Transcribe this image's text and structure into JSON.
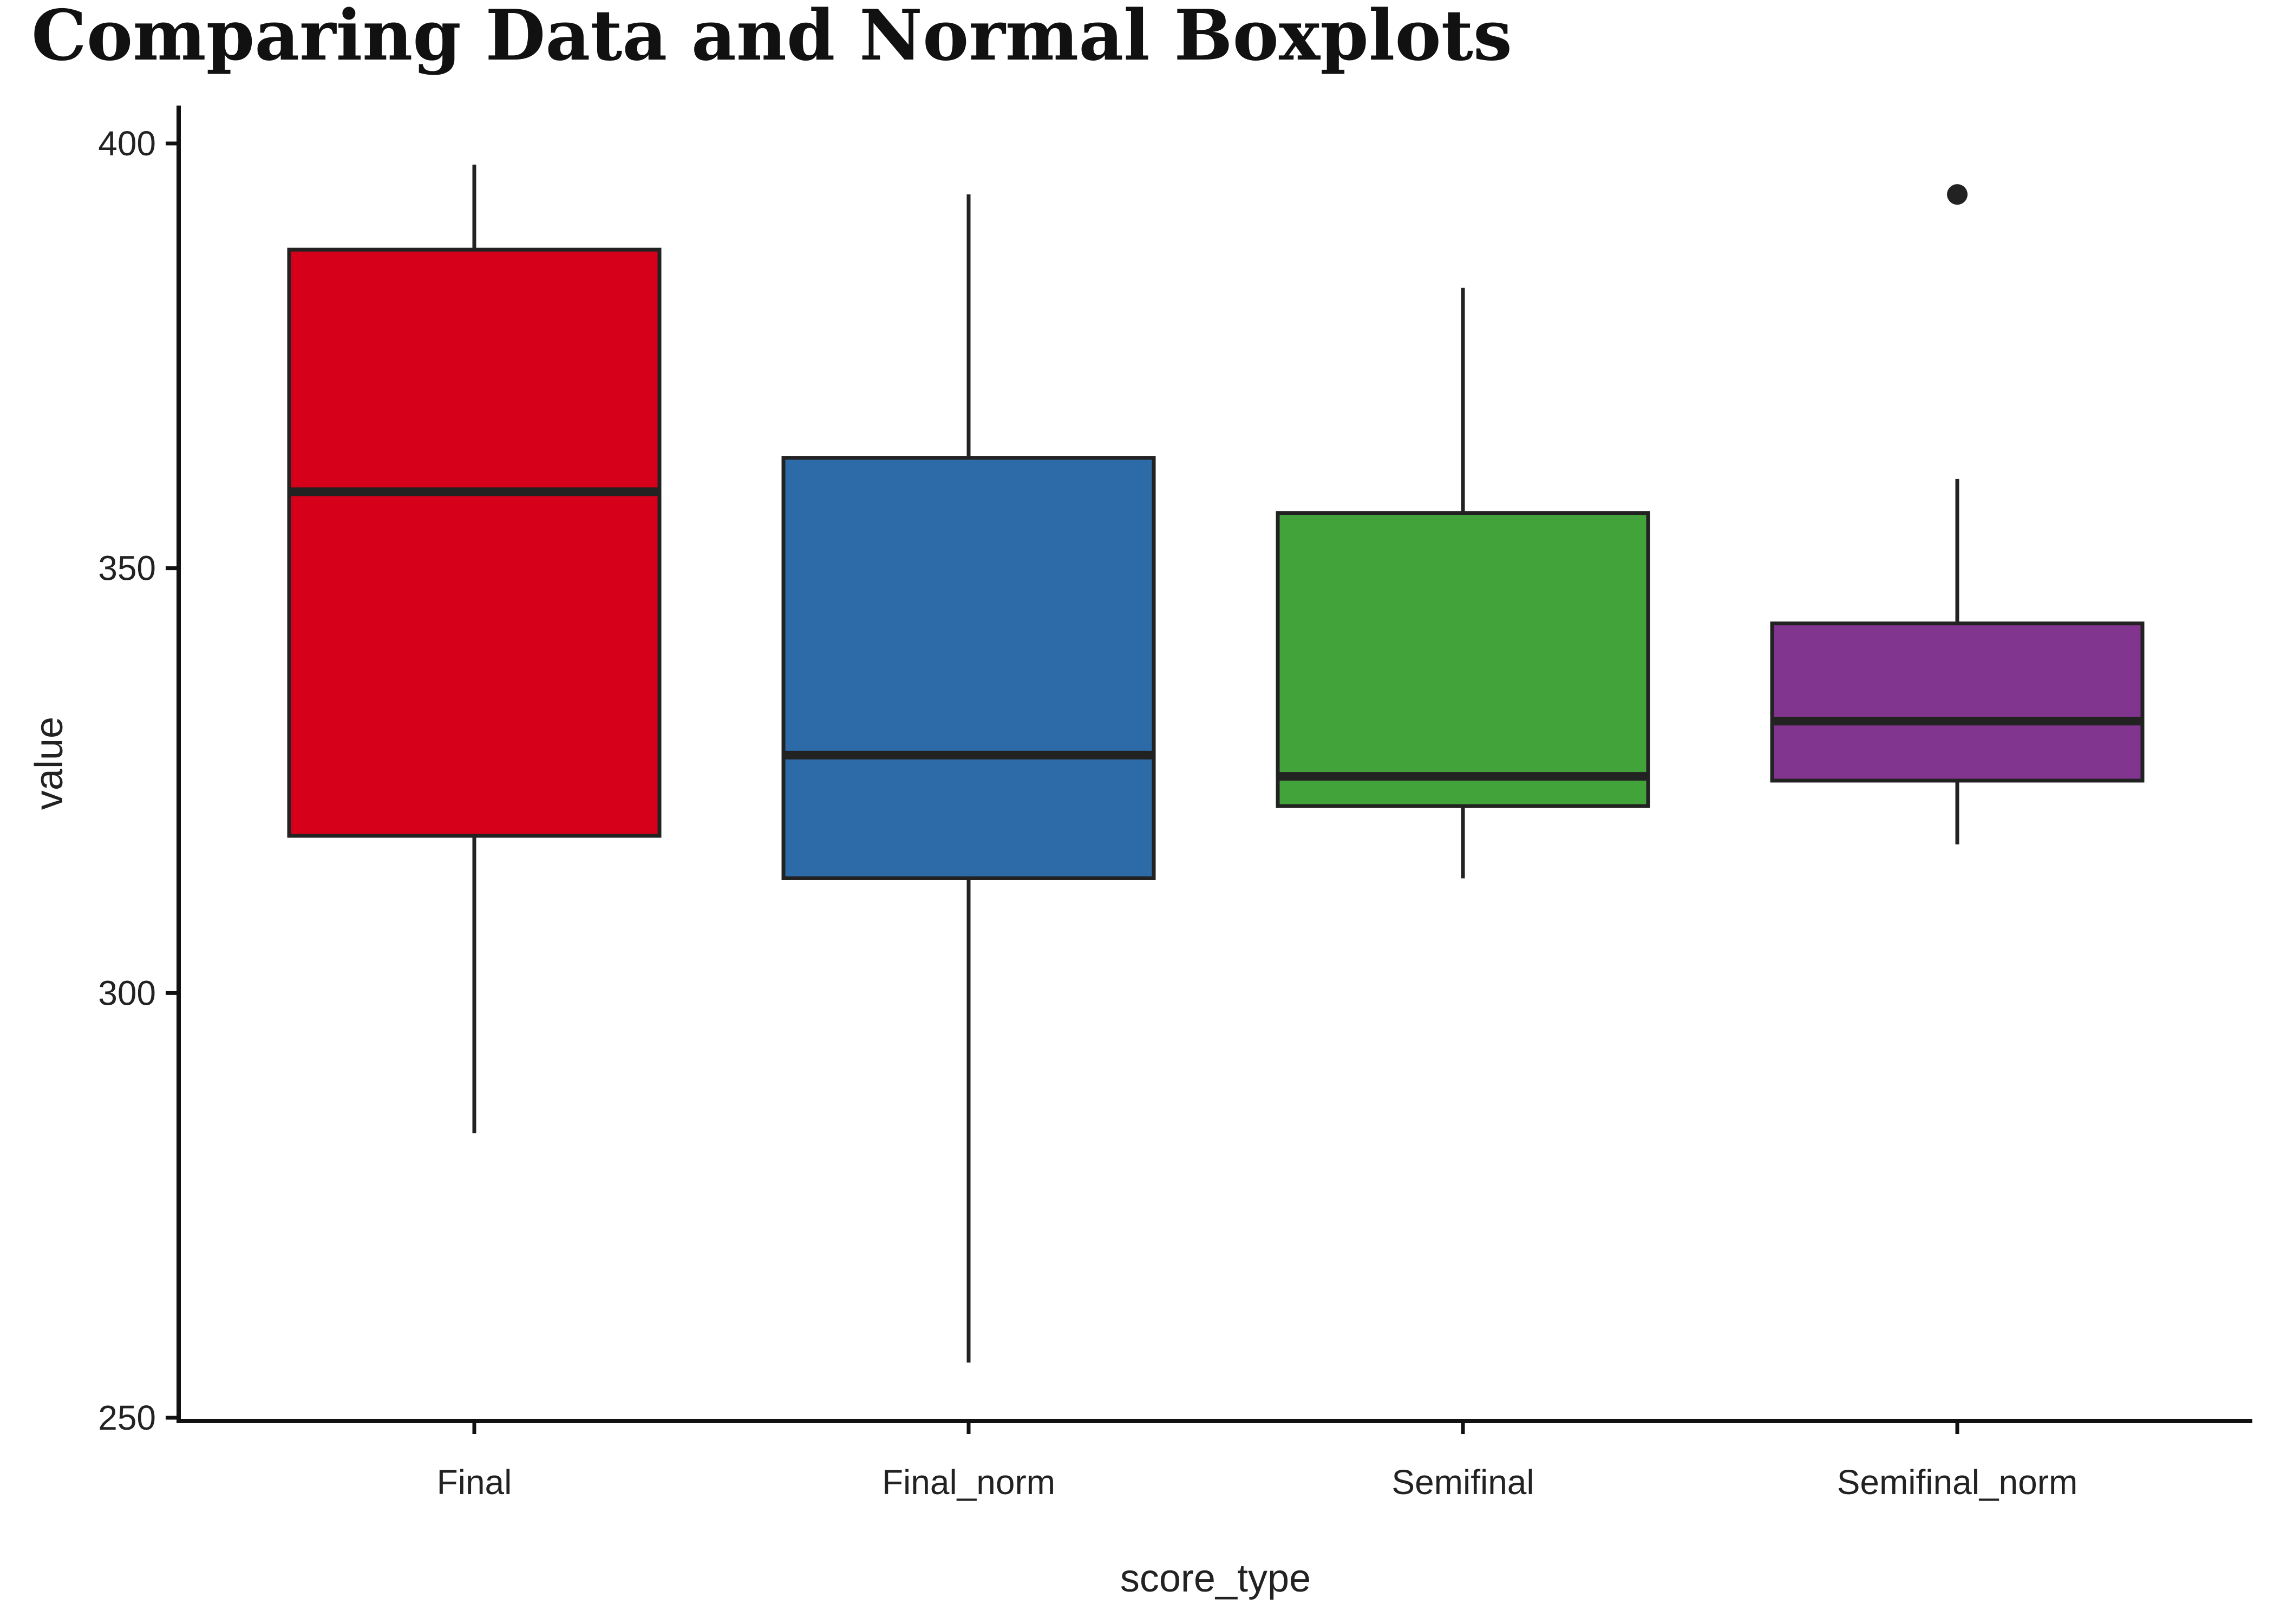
{
  "chart_data": {
    "type": "boxplot",
    "title": "Comparing Data and Normal Boxplots",
    "xlabel": "score_type",
    "ylabel": "value",
    "ylim": [
      250,
      404
    ],
    "yticks": [
      250,
      300,
      350,
      400
    ],
    "grid": false,
    "legend": "none",
    "categories": [
      "Final",
      "Final_norm",
      "Semifinal",
      "Semifinal_norm"
    ],
    "boxes": [
      {
        "category": "Final",
        "color": "#D7001A",
        "whisker_low": 283.5,
        "q1": 318.5,
        "median": 359.0,
        "q3": 387.5,
        "whisker_high": 397.5,
        "outliers": []
      },
      {
        "category": "Final_norm",
        "color": "#2D6AA8",
        "whisker_low": 256.5,
        "q1": 313.5,
        "median": 328.0,
        "q3": 363.0,
        "whisker_high": 394.0,
        "outliers": []
      },
      {
        "category": "Semifinal",
        "color": "#42A33B",
        "whisker_low": 313.5,
        "q1": 322.0,
        "median": 325.5,
        "q3": 356.5,
        "whisker_high": 383.0,
        "outliers": []
      },
      {
        "category": "Semifinal_norm",
        "color": "#82358E",
        "whisker_low": 317.5,
        "q1": 325.0,
        "median": 332.0,
        "q3": 343.5,
        "whisker_high": 360.5,
        "outliers": [
          394.0
        ]
      }
    ]
  }
}
